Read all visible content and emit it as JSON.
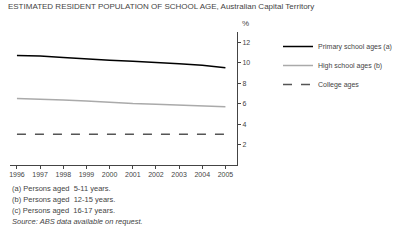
{
  "chart_data": {
    "type": "line",
    "title": "ESTIMATED RESIDENT POPULATION OF SCHOOL AGE, Australian Capital Territory",
    "x": [
      1996,
      1997,
      1998,
      1999,
      2000,
      2001,
      2002,
      2003,
      2004,
      2005
    ],
    "series": [
      {
        "name": "Primary school ages (a)",
        "color": "#000000",
        "line_style": "solid",
        "values": [
          10.7,
          10.65,
          10.5,
          10.35,
          10.25,
          10.15,
          10.05,
          9.9,
          9.75,
          9.5
        ]
      },
      {
        "name": "High school ages (b)",
        "color": "#aaaaaa",
        "line_style": "solid",
        "values": [
          6.5,
          6.45,
          6.35,
          6.25,
          6.1,
          6.0,
          5.95,
          5.85,
          5.75,
          5.7
        ]
      },
      {
        "name": "College ages",
        "color": "#555555",
        "line_style": "dashed",
        "values": [
          3.0,
          3.0,
          3.0,
          3.0,
          3.0,
          3.0,
          3.0,
          3.0,
          3.0,
          3.0
        ]
      }
    ],
    "xlim": [
      1995.7,
      2005.5
    ],
    "xticks": [
      1996,
      1997,
      1998,
      1999,
      2000,
      2001,
      2002,
      2003,
      2004,
      2005
    ],
    "ylim": [
      0,
      13
    ],
    "yticks": [
      2,
      4,
      6,
      8,
      10,
      12
    ],
    "ylabel": "%",
    "annotations": [
      "(a) Persons aged  5-11 years.",
      "(b) Persons aged  12-15 years.",
      "(c) Persons aged  16-17 years.",
      "Source: ABS data available on request."
    ],
    "legend": "upper right",
    "grid": false
  }
}
